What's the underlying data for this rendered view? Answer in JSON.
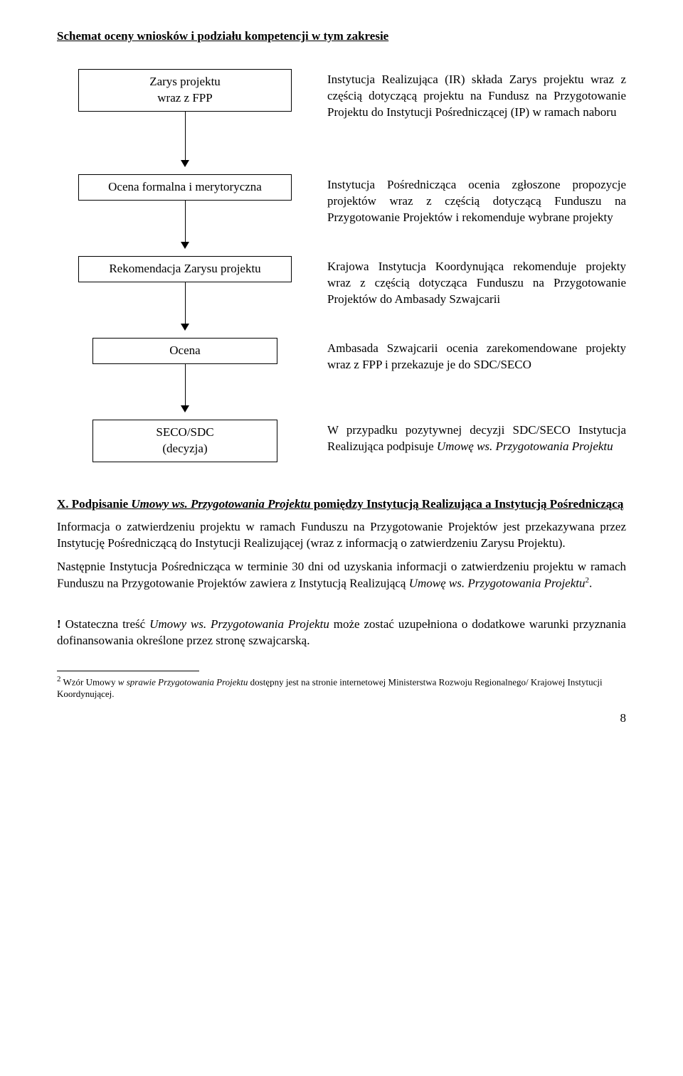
{
  "title": "Schemat oceny wniosków i podziału kompetencji w tym zakresie",
  "flow": [
    {
      "box": "Zarys projektu\nwraz z FPP",
      "desc": "Instytucja Realizująca (IR) składa Zarys projektu wraz z częścią dotyczącą projektu na Fundusz na Przygotowanie Projektu do Instytucji Pośredniczącej (IP) w ramach naboru",
      "connector_h": 68
    },
    {
      "box": "Ocena formalna i merytoryczna",
      "desc": "Instytucja Pośrednicząca ocenia zgłoszone propozycje projektów wraz z częścią dotyczącą Funduszu na Przygotowanie Projektów i rekomenduje wybrane projekty",
      "connector_h": 58
    },
    {
      "box": "Rekomendacja Zarysu projektu",
      "desc": "Krajowa Instytucja Koordynująca rekomenduje projekty wraz z częścią dotycząca Funduszu na Przygotowanie Projektów do Ambasady Szwajcarii",
      "connector_h": 58
    },
    {
      "box": "Ocena",
      "desc": "Ambasada Szwajcarii ocenia zarekomendowane projekty wraz z FPP i przekazuje je do SDC/SECO",
      "connector_h": 58
    },
    {
      "box": "SECO/SDC\n(decyzja)",
      "desc_html": "W przypadku pozytywnej decyzji SDC/SECO Instytucja Realizująca podpisuje <i>Umowę ws. Przygotowania Projektu</i>",
      "connector_h": 0
    }
  ],
  "section_heading_html": "X. Podpisanie <i>Umowy ws. Przygotowania Projektu</i> pomiędzy Instytucją Realizująca a Instytucją Pośredniczącą",
  "para1": "Informacja o zatwierdzeniu projektu w ramach Funduszu na Przygotowanie Projektów jest przekazywana przez Instytucję Pośredniczącą do Instytucji Realizującej (wraz z informacją o zatwierdzeniu Zarysu Projektu).",
  "para2_html": "Następnie Instytucja Pośrednicząca w terminie 30 dni od uzyskania informacji o zatwierdzeniu projektu w ramach Funduszu na Przygotowanie Projektów zawiera z Instytucją Realizującą <i>Umowę ws. Przygotowania Projektu</i><span class=\"sup\">2</span>.",
  "note_html": "<b>!</b> Ostateczna treść <i>Umowy ws. Przygotowania Projektu</i> może zostać uzupełniona o dodatkowe warunki przyznania dofinansowania określone przez stronę szwajcarską.",
  "footnote_html": "<span class=\"sup\">2</span> Wzór Umowy <i>w sprawie Przygotowania Projektu</i> dostępny jest na stronie internetowej Ministerstwa Rozwoju Regionalnego/ Krajowej Instytucji Koordynującej.",
  "page_number": "8"
}
